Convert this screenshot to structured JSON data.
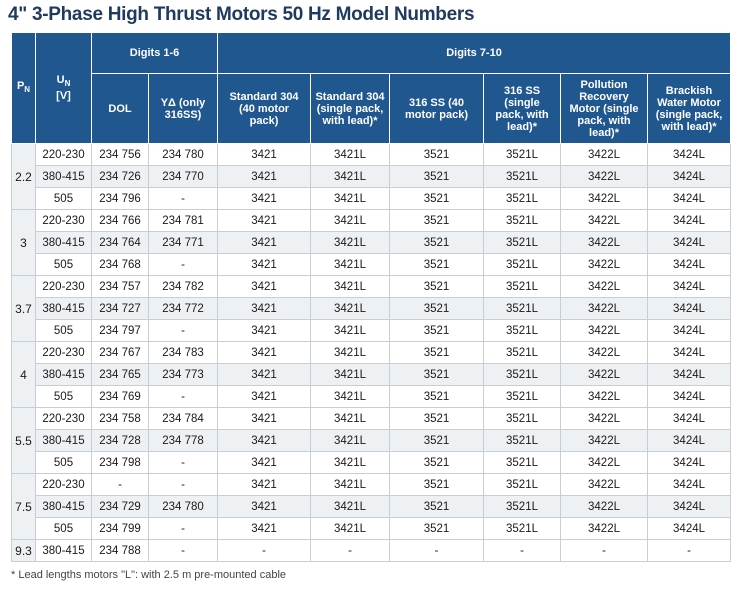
{
  "title": "4\" 3-Phase High Thrust Motors 50 Hz Model Numbers",
  "header": {
    "pn_main": "P",
    "pn_sub": "N",
    "un_main": "U",
    "un_sub": "N",
    "un_unit": "[V]",
    "digits_1_6": "Digits 1-6",
    "digits_7_10": "Digits 7-10",
    "dol": "DOL",
    "yd": "YΔ (only 316SS)",
    "std304": "Standard 304 (40 motor pack)",
    "std304_single": "Standard 304 (single pack, with lead)*",
    "ss316": "316 SS (40 motor pack)",
    "ss316_single": "316 SS (single pack, with lead)*",
    "pollution": "Pollution Recovery Motor (single pack, with lead)*",
    "brackish": "Brackish Water Motor (single pack, with lead)*"
  },
  "groups": [
    {
      "pn": "2.2",
      "rows": [
        {
          "un": "220-230",
          "dol": "234 756",
          "yd": "234 780",
          "std304": "3421",
          "std304_single": "3421L",
          "ss316": "3521",
          "ss316_single": "3521L",
          "pollution": "3422L",
          "brackish": "3424L"
        },
        {
          "un": "380-415",
          "dol": "234 726",
          "yd": "234 770",
          "std304": "3421",
          "std304_single": "3421L",
          "ss316": "3521",
          "ss316_single": "3521L",
          "pollution": "3422L",
          "brackish": "3424L"
        },
        {
          "un": "505",
          "dol": "234 796",
          "yd": "-",
          "std304": "3421",
          "std304_single": "3421L",
          "ss316": "3521",
          "ss316_single": "3521L",
          "pollution": "3422L",
          "brackish": "3424L"
        }
      ]
    },
    {
      "pn": "3",
      "rows": [
        {
          "un": "220-230",
          "dol": "234 766",
          "yd": "234 781",
          "std304": "3421",
          "std304_single": "3421L",
          "ss316": "3521",
          "ss316_single": "3521L",
          "pollution": "3422L",
          "brackish": "3424L"
        },
        {
          "un": "380-415",
          "dol": "234 764",
          "yd": "234 771",
          "std304": "3421",
          "std304_single": "3421L",
          "ss316": "3521",
          "ss316_single": "3521L",
          "pollution": "3422L",
          "brackish": "3424L"
        },
        {
          "un": "505",
          "dol": "234 768",
          "yd": "-",
          "std304": "3421",
          "std304_single": "3421L",
          "ss316": "3521",
          "ss316_single": "3521L",
          "pollution": "3422L",
          "brackish": "3424L"
        }
      ]
    },
    {
      "pn": "3.7",
      "rows": [
        {
          "un": "220-230",
          "dol": "234 757",
          "yd": "234 782",
          "std304": "3421",
          "std304_single": "3421L",
          "ss316": "3521",
          "ss316_single": "3521L",
          "pollution": "3422L",
          "brackish": "3424L"
        },
        {
          "un": "380-415",
          "dol": "234 727",
          "yd": "234 772",
          "std304": "3421",
          "std304_single": "3421L",
          "ss316": "3521",
          "ss316_single": "3521L",
          "pollution": "3422L",
          "brackish": "3424L"
        },
        {
          "un": "505",
          "dol": "234 797",
          "yd": "-",
          "std304": "3421",
          "std304_single": "3421L",
          "ss316": "3521",
          "ss316_single": "3521L",
          "pollution": "3422L",
          "brackish": "3424L"
        }
      ]
    },
    {
      "pn": "4",
      "rows": [
        {
          "un": "220-230",
          "dol": "234 767",
          "yd": "234 783",
          "std304": "3421",
          "std304_single": "3421L",
          "ss316": "3521",
          "ss316_single": "3521L",
          "pollution": "3422L",
          "brackish": "3424L"
        },
        {
          "un": "380-415",
          "dol": "234 765",
          "yd": "234 773",
          "std304": "3421",
          "std304_single": "3421L",
          "ss316": "3521",
          "ss316_single": "3521L",
          "pollution": "3422L",
          "brackish": "3424L"
        },
        {
          "un": "505",
          "dol": "234 769",
          "yd": "-",
          "std304": "3421",
          "std304_single": "3421L",
          "ss316": "3521",
          "ss316_single": "3521L",
          "pollution": "3422L",
          "brackish": "3424L"
        }
      ]
    },
    {
      "pn": "5.5",
      "rows": [
        {
          "un": "220-230",
          "dol": "234 758",
          "yd": "234 784",
          "std304": "3421",
          "std304_single": "3421L",
          "ss316": "3521",
          "ss316_single": "3521L",
          "pollution": "3422L",
          "brackish": "3424L"
        },
        {
          "un": "380-415",
          "dol": "234 728",
          "yd": "234 778",
          "std304": "3421",
          "std304_single": "3421L",
          "ss316": "3521",
          "ss316_single": "3521L",
          "pollution": "3422L",
          "brackish": "3424L"
        },
        {
          "un": "505",
          "dol": "234 798",
          "yd": "-",
          "std304": "3421",
          "std304_single": "3421L",
          "ss316": "3521",
          "ss316_single": "3521L",
          "pollution": "3422L",
          "brackish": "3424L"
        }
      ]
    },
    {
      "pn": "7.5",
      "rows": [
        {
          "un": "220-230",
          "dol": "-",
          "yd": "-",
          "std304": "3421",
          "std304_single": "3421L",
          "ss316": "3521",
          "ss316_single": "3521L",
          "pollution": "3422L",
          "brackish": "3424L"
        },
        {
          "un": "380-415",
          "dol": "234 729",
          "yd": "234 780",
          "std304": "3421",
          "std304_single": "3421L",
          "ss316": "3521",
          "ss316_single": "3521L",
          "pollution": "3422L",
          "brackish": "3424L"
        },
        {
          "un": "505",
          "dol": "234 799",
          "yd": "-",
          "std304": "3421",
          "std304_single": "3421L",
          "ss316": "3521",
          "ss316_single": "3521L",
          "pollution": "3422L",
          "brackish": "3424L"
        }
      ]
    },
    {
      "pn": "9.3",
      "rows": [
        {
          "un": "380-415",
          "dol": "234 788",
          "yd": "-",
          "std304": "-",
          "std304_single": "-",
          "ss316": "-",
          "ss316_single": "-",
          "pollution": "-",
          "brackish": "-"
        }
      ]
    }
  ],
  "footnote": "* Lead lengths motors \"L\": with 2.5 m pre-mounted cable"
}
